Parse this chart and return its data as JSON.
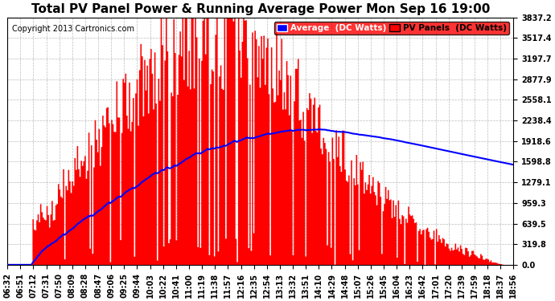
{
  "title": "Total PV Panel Power & Running Average Power Mon Sep 16 19:00",
  "copyright": "Copyright 2013 Cartronics.com",
  "background_color": "#ffffff",
  "plot_bg_color": "#ffffff",
  "grid_color": "#aaaaaa",
  "bar_color": "#ff0000",
  "avg_color": "#0000ff",
  "y_ticks": [
    0.0,
    319.8,
    639.5,
    959.3,
    1279.1,
    1598.8,
    1918.6,
    2238.4,
    2558.1,
    2877.9,
    3197.7,
    3517.4,
    3837.2
  ],
  "y_max": 3837.2,
  "x_tick_labels": [
    "06:32",
    "06:51",
    "07:12",
    "07:31",
    "07:50",
    "08:09",
    "08:28",
    "08:47",
    "09:06",
    "09:25",
    "09:44",
    "10:03",
    "10:22",
    "10:41",
    "11:00",
    "11:19",
    "11:38",
    "11:57",
    "12:16",
    "12:35",
    "12:54",
    "13:13",
    "13:32",
    "13:51",
    "14:10",
    "14:29",
    "14:48",
    "15:07",
    "15:26",
    "15:45",
    "16:04",
    "16:23",
    "16:42",
    "17:01",
    "17:20",
    "17:39",
    "17:59",
    "18:18",
    "18:37",
    "18:56"
  ],
  "legend_blue_label": "Average  (DC Watts)",
  "legend_red_label": "PV Panels  (DC Watts)",
  "title_fontsize": 11,
  "copyright_fontsize": 7,
  "tick_fontsize": 7,
  "legend_fontsize": 7.5
}
